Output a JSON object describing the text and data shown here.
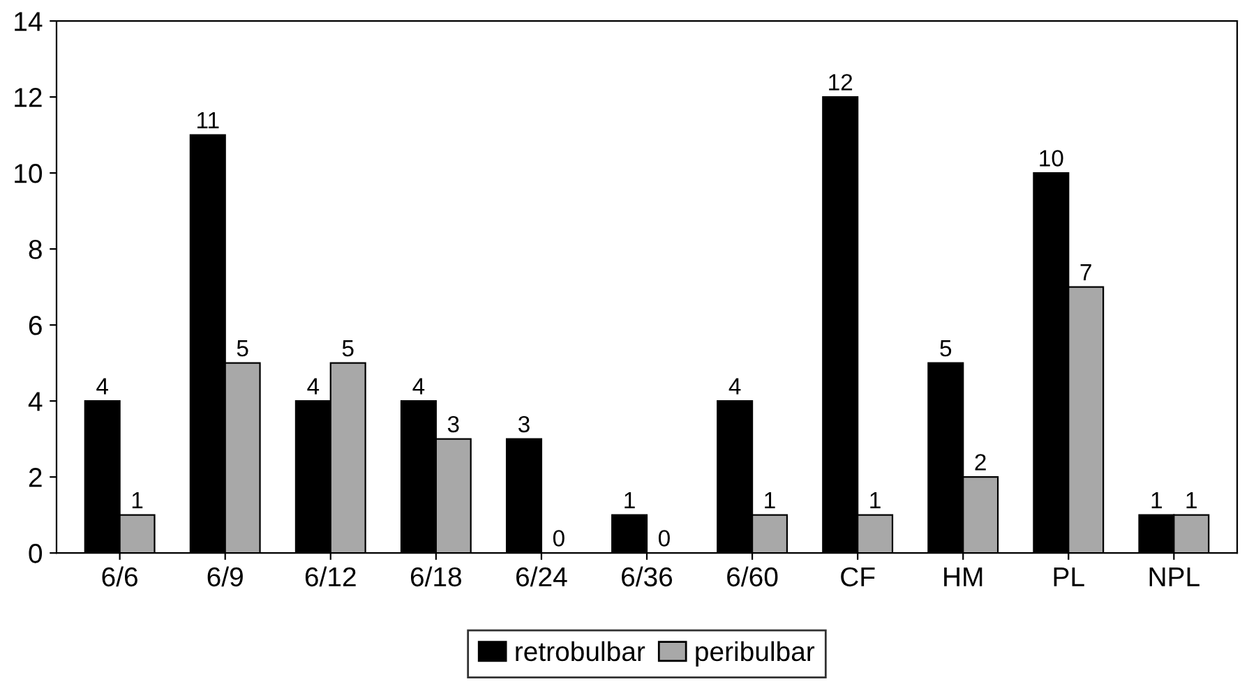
{
  "chart_data": {
    "type": "bar",
    "categories": [
      "6/6",
      "6/9",
      "6/12",
      "6/18",
      "6/24",
      "6/36",
      "6/60",
      "CF",
      "HM",
      "PL",
      "NPL"
    ],
    "series": [
      {
        "name": "retrobulbar",
        "color": "#000000",
        "values": [
          4,
          11,
          4,
          4,
          3,
          1,
          4,
          12,
          5,
          10,
          1
        ]
      },
      {
        "name": "peribulbar",
        "color": "#a8a8a8",
        "values": [
          1,
          5,
          5,
          3,
          0,
          0,
          1,
          1,
          2,
          7,
          1
        ]
      }
    ],
    "ylim": [
      0,
      14
    ],
    "yticks": [
      0,
      2,
      4,
      6,
      8,
      10,
      12,
      14
    ],
    "grid": false,
    "legend": "bottom",
    "data_labels": true
  }
}
